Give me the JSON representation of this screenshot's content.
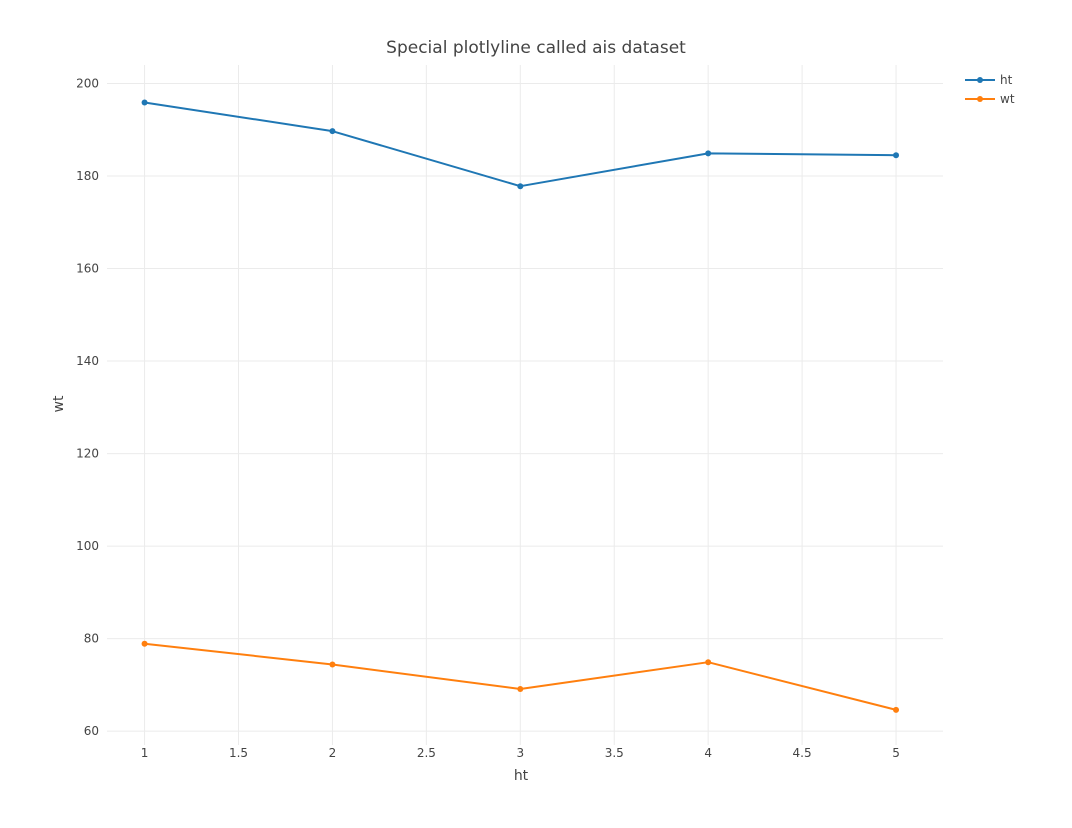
{
  "chart_data": {
    "type": "line",
    "title": "Special plotlyline called ais dataset",
    "xlabel": "ht",
    "ylabel": "wt",
    "x": [
      1,
      2,
      3,
      4,
      5
    ],
    "xlim": [
      0.8,
      5.25
    ],
    "ylim": [
      57,
      204
    ],
    "xticks": [
      1,
      1.5,
      2,
      2.5,
      3,
      3.5,
      4,
      4.5,
      5
    ],
    "xtick_labels": [
      "1",
      "1.5",
      "2",
      "2.5",
      "3",
      "3.5",
      "4",
      "4.5",
      "5"
    ],
    "yticks": [
      60,
      80,
      100,
      120,
      140,
      160,
      180,
      200
    ],
    "ytick_labels": [
      "60",
      "80",
      "100",
      "120",
      "140",
      "160",
      "180",
      "200"
    ],
    "grid": true,
    "legend_position": "top-right",
    "series": [
      {
        "name": "ht",
        "color": "#1f77b4",
        "values": [
          195.9,
          189.7,
          177.8,
          184.9,
          184.5
        ]
      },
      {
        "name": "wt",
        "color": "#ff7f0e",
        "values": [
          78.9,
          74.4,
          69.1,
          74.9,
          64.6
        ]
      }
    ]
  }
}
